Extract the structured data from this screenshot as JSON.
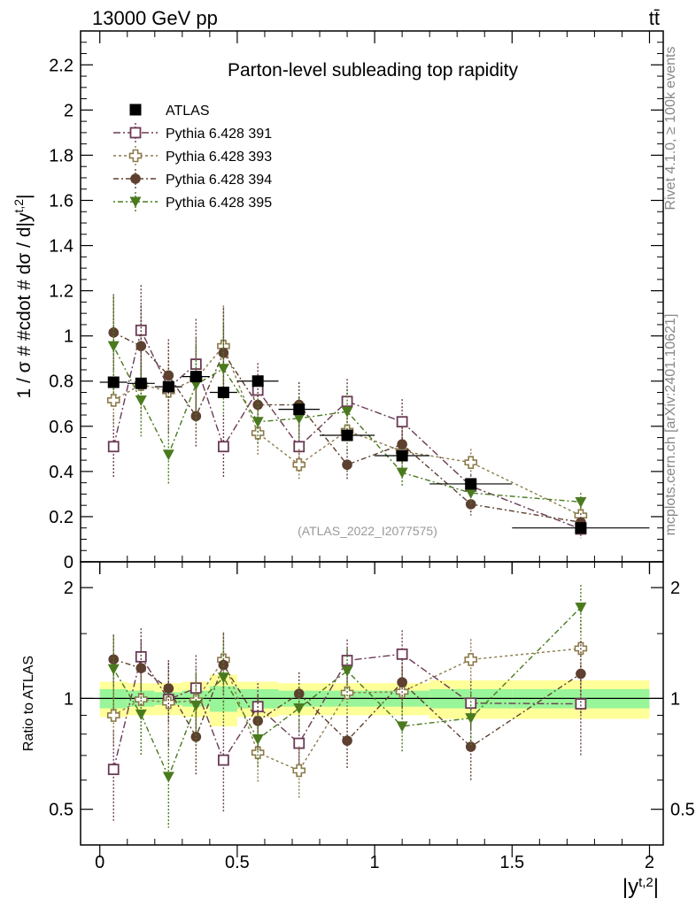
{
  "header": {
    "energy": "13000 GeV pp",
    "process": "tt̄"
  },
  "side_labels": {
    "rivet": "Rivet 4.1.0, ≥ 100k events",
    "mcplots": "mcplots.cern.ch [arXiv:2401.10621]"
  },
  "chart_data": {
    "type": "scatter",
    "title": "Parton-level subleading top rapidity",
    "analysis_id": "(ATLAS_2022_I2077575)",
    "xlabel": "|y^{t,2}|",
    "ylabel": "1 / σ # #cdot # dσ / d|y^{t,2}|",
    "ratio_ylabel": "Ratio to ATLAS",
    "xlim": [
      -0.07,
      2.05
    ],
    "ylim": [
      0,
      2.35
    ],
    "ratio_ylim": [
      0.4,
      2.35
    ],
    "x_ticks": [
      "0",
      "0.5",
      "1",
      "1.5",
      "2"
    ],
    "y_ticks": [
      "0",
      "0.2",
      "0.4",
      "0.6",
      "0.8",
      "1",
      "1.2",
      "1.4",
      "1.6",
      "1.8",
      "2",
      "2.2"
    ],
    "ratio_ticks": [
      "0.5",
      "1",
      "2"
    ],
    "bins": [
      [
        0,
        0.1
      ],
      [
        0.1,
        0.2
      ],
      [
        0.2,
        0.3
      ],
      [
        0.3,
        0.4
      ],
      [
        0.4,
        0.5
      ],
      [
        0.5,
        0.65
      ],
      [
        0.65,
        0.8
      ],
      [
        0.8,
        1.0
      ],
      [
        1.0,
        1.2
      ],
      [
        1.2,
        1.5
      ],
      [
        1.5,
        2.0
      ]
    ],
    "x": [
      0.05,
      0.15,
      0.25,
      0.35,
      0.45,
      0.575,
      0.725,
      0.9,
      1.1,
      1.35,
      1.75
    ],
    "data": {
      "name": "ATLAS",
      "values": [
        0.795,
        0.79,
        0.775,
        0.82,
        0.75,
        0.8,
        0.675,
        0.56,
        0.47,
        0.345,
        0.15
      ],
      "errors": [
        0.02,
        0.02,
        0.02,
        0.02,
        0.02,
        0.02,
        0.02,
        0.02,
        0.02,
        0.02,
        0.02
      ],
      "band_inner": [
        0.06,
        0.05,
        0.04,
        0.05,
        0.08,
        0.06,
        0.05,
        0.05,
        0.05,
        0.06,
        0.06
      ],
      "band_outer": [
        0.11,
        0.1,
        0.1,
        0.11,
        0.16,
        0.11,
        0.1,
        0.1,
        0.1,
        0.12,
        0.12
      ]
    },
    "series": [
      {
        "name": "Pythia 6.428 391",
        "color": "#6b3a55",
        "marker": "open-square",
        "dash": "8 3 2 3",
        "values": [
          0.51,
          1.025,
          0.77,
          0.875,
          0.51,
          0.76,
          0.51,
          0.71,
          0.62,
          0.335,
          0.145
        ],
        "errors": [
          0.14,
          0.2,
          0.2,
          0.2,
          0.14,
          0.12,
          0.08,
          0.1,
          0.1,
          0.05,
          0.04
        ]
      },
      {
        "name": "Pythia 6.428 393",
        "color": "#8c7a4a",
        "marker": "open-cross",
        "dash": "3 3",
        "values": [
          0.715,
          0.785,
          0.755,
          0.81,
          0.955,
          0.57,
          0.43,
          0.58,
          0.49,
          0.44,
          0.205
        ],
        "errors": [
          0.12,
          0.15,
          0.15,
          0.18,
          0.18,
          0.1,
          0.07,
          0.09,
          0.08,
          0.06,
          0.04
        ]
      },
      {
        "name": "Pythia 6.428 394",
        "color": "#5e4030",
        "marker": "filled-circle",
        "dash": "6 3 2 3",
        "values": [
          1.015,
          0.955,
          0.825,
          0.645,
          0.925,
          0.695,
          0.695,
          0.43,
          0.52,
          0.255,
          0.175
        ],
        "errors": [
          0.17,
          0.18,
          0.16,
          0.14,
          0.2,
          0.12,
          0.1,
          0.07,
          0.08,
          0.05,
          0.04
        ]
      },
      {
        "name": "Pythia 6.428 395",
        "color": "#4a7a1e",
        "marker": "filled-triangle-down",
        "dash": "2 3 6 3",
        "values": [
          0.955,
          0.715,
          0.475,
          0.785,
          0.855,
          0.62,
          0.635,
          0.665,
          0.395,
          0.305,
          0.265
        ],
        "errors": [
          0.22,
          0.16,
          0.13,
          0.17,
          0.2,
          0.1,
          0.09,
          0.1,
          0.06,
          0.05,
          0.04
        ]
      }
    ],
    "legend": [
      "ATLAS",
      "Pythia 6.428 391",
      "Pythia 6.428 393",
      "Pythia 6.428 394",
      "Pythia 6.428 395"
    ],
    "legend_position": "top-left"
  }
}
